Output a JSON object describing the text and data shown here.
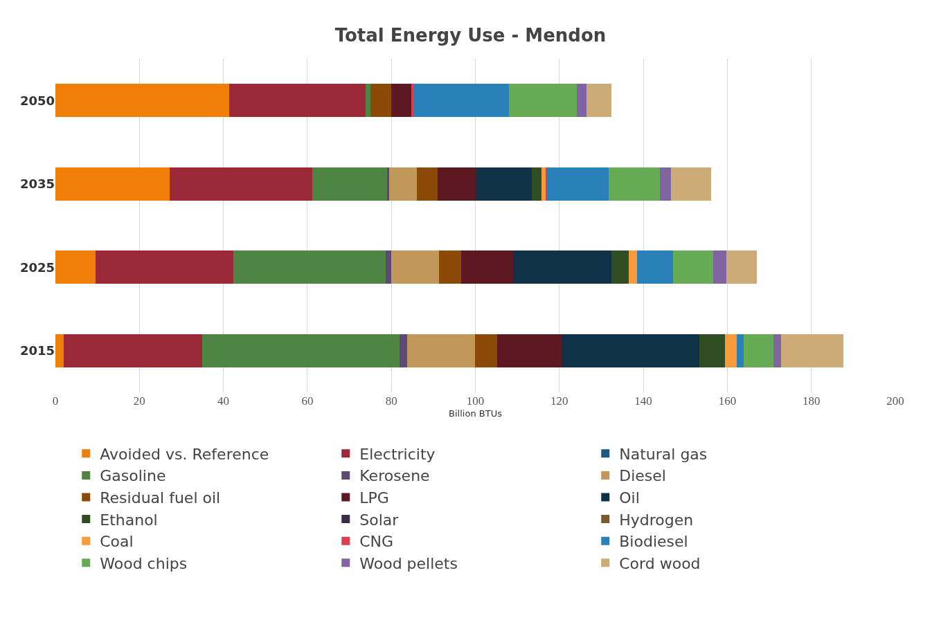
{
  "chart_data": {
    "type": "bar",
    "orientation": "horizontal",
    "stacked": true,
    "title": "Total Energy Use - Mendon",
    "xlabel": "Billion BTUs",
    "categories": [
      "2050",
      "2035",
      "2025",
      "2015"
    ],
    "xlim": [
      0,
      200
    ],
    "xticks": [
      0,
      20,
      40,
      60,
      80,
      100,
      120,
      140,
      160,
      180,
      200
    ],
    "grid": "x",
    "legend": "bottom",
    "series": [
      {
        "name": "Avoided vs. Reference",
        "color": "#f07f09",
        "values": [
          41.4,
          27.2,
          9.6,
          2.0
        ]
      },
      {
        "name": "Electricity",
        "color": "#9e2936",
        "values": [
          32.5,
          33.9,
          32.7,
          33.0
        ]
      },
      {
        "name": "Natural gas",
        "color": "#1a5a85",
        "values": [
          0,
          0,
          0,
          0
        ]
      },
      {
        "name": "Gasoline",
        "color": "#4e8542",
        "values": [
          1.2,
          17.8,
          36.4,
          46.9
        ]
      },
      {
        "name": "Kerosene",
        "color": "#5f4778",
        "values": [
          0,
          0.5,
          1.3,
          1.8
        ]
      },
      {
        "name": "Diesel",
        "color": "#c19859",
        "values": [
          0,
          6.6,
          11.3,
          16.2
        ]
      },
      {
        "name": "Residual fuel oil",
        "color": "#8c4a08",
        "values": [
          4.9,
          5.0,
          5.3,
          5.3
        ]
      },
      {
        "name": "LPG",
        "color": "#5e1822",
        "values": [
          4.7,
          9.1,
          12.4,
          15.3
        ]
      },
      {
        "name": "Oil",
        "color": "#0f3249",
        "values": [
          0,
          13.4,
          23.4,
          32.8
        ]
      },
      {
        "name": "Ethanol",
        "color": "#2f4e23",
        "values": [
          0,
          2.3,
          4.1,
          6.1
        ]
      },
      {
        "name": "Solar",
        "color": "#3b2a4a",
        "values": [
          0,
          0,
          0,
          0
        ]
      },
      {
        "name": "Hydrogen",
        "color": "#7b5a2e",
        "values": [
          0,
          0,
          0,
          0
        ]
      },
      {
        "name": "Coal",
        "color": "#f79a3b",
        "values": [
          0,
          1.0,
          2.0,
          2.8
        ]
      },
      {
        "name": "CNG",
        "color": "#d8404e",
        "values": [
          0.5,
          0.3,
          0,
          0
        ]
      },
      {
        "name": "Biodiesel",
        "color": "#2a80b9",
        "values": [
          22.8,
          14.6,
          8.5,
          1.7
        ]
      },
      {
        "name": "Wood chips",
        "color": "#68ab57",
        "values": [
          16.1,
          12.3,
          9.7,
          7.1
        ]
      },
      {
        "name": "Wood pellets",
        "color": "#8064a2",
        "values": [
          2.3,
          2.6,
          3.0,
          1.8
        ]
      },
      {
        "name": "Cord wood",
        "color": "#ccab78",
        "values": [
          6.0,
          9.5,
          7.3,
          14.9
        ]
      }
    ]
  }
}
